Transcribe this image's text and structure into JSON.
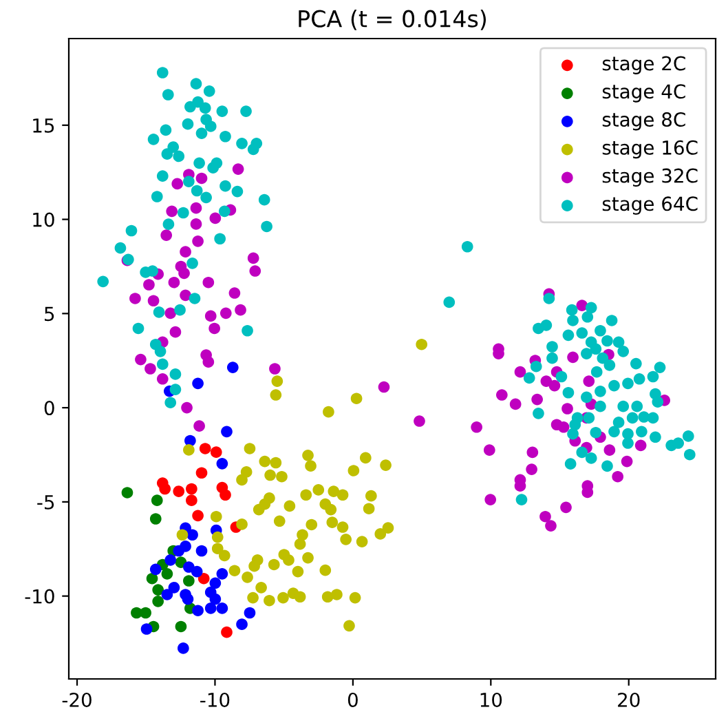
{
  "chart_data": {
    "type": "scatter",
    "title": "PCA (t = 0.014s)",
    "xlim": [
      -20.6,
      26.3
    ],
    "ylim": [
      -14.4,
      19.6
    ],
    "xticks": [
      -20,
      -10,
      0,
      10,
      20
    ],
    "yticks": [
      -10,
      -5,
      0,
      5,
      10,
      15
    ],
    "grid": false,
    "legend": "top right",
    "marker": "circle",
    "series": [
      {
        "name": "stage 2C",
        "color": "#ff0000",
        "x": [
          -10.71,
          -9.91,
          -10.97,
          -13.8,
          -12.63,
          -11.7,
          -11.7,
          -9.48,
          -9.25,
          -11.24,
          -8.48,
          -10.81,
          -9.15,
          -13.63
        ],
        "values": [
          -2.17,
          -2.36,
          -3.46,
          -4.0,
          -4.44,
          -4.31,
          -4.92,
          -4.24,
          -4.63,
          -5.73,
          -6.34,
          -9.07,
          -11.92,
          -4.31
        ]
      },
      {
        "name": "stage 4C",
        "color": "#008000",
        "x": [
          -16.36,
          -14.2,
          -14.3,
          -13.03,
          -13.8,
          -14.56,
          -13.47,
          -14.13,
          -14.13,
          -15.69,
          -15.03,
          -14.46,
          -12.47,
          -11.8,
          -11.9,
          -12.47
        ],
        "values": [
          -4.51,
          -4.92,
          -5.9,
          -7.6,
          -8.33,
          -9.07,
          -8.82,
          -9.67,
          -10.28,
          -10.89,
          -10.89,
          -11.62,
          -11.62,
          -10.65,
          -9.19,
          -8.21
        ]
      },
      {
        "name": "stage 8C",
        "color": "#0000ff",
        "x": [
          -8.71,
          -11.24,
          -13.3,
          -9.15,
          -11.8,
          -9.48,
          -12.14,
          -11.64,
          -9.91,
          -12.63,
          -13.23,
          -10.97,
          -12.14,
          -14.3,
          -11.9,
          -11.31,
          -9.48,
          -9.98,
          -13.47,
          -12.14,
          -10.31,
          -9.98,
          -9.48,
          -10.31,
          -11.24,
          -7.48,
          -8.05,
          -14.96,
          -12.3,
          -12.97,
          -11.97
        ],
        "values": [
          2.14,
          1.29,
          0.88,
          -1.27,
          -1.75,
          -2.97,
          -6.39,
          -6.75,
          -6.51,
          -7.6,
          -8.09,
          -7.6,
          -7.36,
          -8.58,
          -8.46,
          -8.7,
          -8.82,
          -9.31,
          -9.92,
          -9.92,
          -9.8,
          -10.16,
          -10.65,
          -10.65,
          -10.77,
          -10.89,
          -11.5,
          -11.75,
          -12.77,
          -9.55,
          -10.16
        ]
      },
      {
        "name": "stage 16C",
        "color": "#bfbf00",
        "x": [
          -5.49,
          -5.59,
          0.26,
          -1.77,
          -11.9,
          -7.48,
          -6.39,
          -5.59,
          -3.26,
          -3.06,
          0.92,
          2.38,
          0.05,
          -7.72,
          -8.05,
          -6.0,
          -5.16,
          -6.06,
          -6.82,
          -6.39,
          -4.59,
          -3.4,
          -2.5,
          -1.4,
          -0.74,
          1.32,
          1.16,
          -2.0,
          -1.6,
          -5.32,
          -9.91,
          -8.05,
          -3.0,
          -3.66,
          -3.83,
          -1.5,
          -0.74,
          -0.51,
          0.66,
          1.99,
          2.55,
          -12.37,
          -9.81,
          -9.31,
          -9.81,
          -6.92,
          -7.15,
          -5.72,
          -4.99,
          -4.66,
          -3.99,
          -3.26,
          -2.0,
          -8.58,
          -7.65,
          -6.65,
          -7.25,
          -6.06,
          -5.06,
          -4.33,
          -3.83,
          -1.83,
          -1.17,
          0.16,
          -0.27,
          4.98
        ],
        "values": [
          1.41,
          0.68,
          0.49,
          -0.22,
          -2.24,
          -2.17,
          -2.85,
          -2.92,
          -2.53,
          -3.09,
          -2.66,
          -3.05,
          -3.34,
          -3.41,
          -3.83,
          -3.58,
          -3.66,
          -4.8,
          -5.41,
          -5.12,
          -5.22,
          -4.63,
          -4.36,
          -4.44,
          -4.63,
          -4.68,
          -5.36,
          -5.12,
          -5.41,
          -6.02,
          -5.78,
          -6.19,
          -6.21,
          -6.75,
          -7.24,
          -6.09,
          -6.34,
          -6.99,
          -7.11,
          -6.7,
          -6.38,
          -6.75,
          -6.87,
          -7.85,
          -7.48,
          -8.09,
          -8.41,
          -8.33,
          -7.8,
          -8.09,
          -8.7,
          -7.97,
          -8.63,
          -8.65,
          -9.0,
          -9.55,
          -10.09,
          -10.24,
          -10.09,
          -9.85,
          -10.04,
          -10.04,
          -9.92,
          -10.09,
          -11.58,
          3.36
        ]
      },
      {
        "name": "stage 32C",
        "color": "#bf00bf",
        "x": [
          -8.32,
          -11.9,
          -10.97,
          -12.73,
          -13.13,
          -11.37,
          -9.98,
          -8.88,
          -13.53,
          -11.37,
          -11.24,
          -12.14,
          -12.47,
          -16.36,
          -14.13,
          -12.24,
          -7.22,
          -7.09,
          -14.79,
          -12.97,
          -10.48,
          -15.79,
          -14.46,
          -12.14,
          -8.58,
          -13.23,
          -10.31,
          -9.21,
          -8.15,
          -10.04,
          -12.87,
          -13.8,
          -10.64,
          -10.48,
          -15.39,
          -14.69,
          -5.66,
          -13.8,
          -12.04,
          -11.14,
          2.25,
          14.22,
          16.61,
          10.56,
          10.56,
          13.22,
          15.95,
          18.54,
          12.13,
          14.02,
          14.62,
          14.78,
          17.11,
          10.8,
          11.79,
          13.36,
          15.55,
          17.28,
          22.59,
          4.82,
          8.97,
          14.78,
          15.28,
          16.94,
          16.11,
          17.94,
          9.9,
          13.02,
          16.94,
          18.61,
          20.87,
          19.87,
          12.96,
          12.13,
          12.13,
          19.2,
          17.01,
          17.01,
          9.97,
          15.45,
          13.95,
          14.35
        ],
        "values": [
          12.67,
          12.38,
          12.18,
          11.89,
          10.43,
          10.6,
          10.06,
          10.5,
          9.16,
          9.75,
          8.84,
          8.28,
          7.5,
          7.82,
          7.09,
          7.14,
          7.94,
          7.26,
          6.53,
          6.65,
          6.65,
          5.8,
          5.68,
          5.97,
          6.09,
          5.02,
          4.87,
          5.02,
          5.19,
          4.21,
          4.02,
          3.48,
          2.8,
          2.43,
          2.56,
          2.07,
          2.07,
          1.53,
          0.0,
          -0.97,
          1.1,
          6.04,
          5.43,
          3.12,
          2.87,
          2.51,
          2.68,
          2.82,
          1.9,
          1.41,
          1.17,
          1.9,
          1.41,
          0.68,
          0.19,
          0.44,
          -0.05,
          0.19,
          0.39,
          -0.71,
          -1.03,
          -0.9,
          -1.03,
          -0.54,
          -1.76,
          -1.56,
          -2.25,
          -2.37,
          -2.12,
          -2.25,
          -2.0,
          -2.85,
          -3.27,
          -3.83,
          -4.15,
          -3.66,
          -4.15,
          -4.49,
          -4.88,
          -5.29,
          -5.78,
          -6.27
        ]
      },
      {
        "name": "stage 64C",
        "color": "#00bfbf",
        "x": [
          -13.8,
          -11.37,
          -10.41,
          -13.4,
          -11.8,
          -11.24,
          -10.71,
          -9.48,
          -7.75,
          -10.64,
          -11.97,
          -10.31,
          -13.57,
          -10.97,
          -9.25,
          -14.46,
          -13.03,
          -13.47,
          -12.63,
          -8.05,
          -6.99,
          -7.22,
          -11.14,
          -10.14,
          -9.88,
          -13.8,
          -11.9,
          -11.31,
          -10.64,
          -9.25,
          -8.38,
          -14.2,
          -12.3,
          -9.31,
          -6.42,
          -13.37,
          -6.25,
          -16.06,
          -9.64,
          -16.86,
          -16.29,
          -11.64,
          -15.03,
          -14.53,
          -18.12,
          -11.47,
          -12.54,
          -14.06,
          -15.56,
          -7.65,
          -14.3,
          -13.96,
          -13.8,
          -12.87,
          -12.87,
          -13.23,
          8.3,
          6.98,
          14.22,
          15.88,
          17.28,
          17.01,
          15.95,
          18.77,
          13.45,
          14.02,
          15.62,
          16.61,
          17.94,
          17.28,
          18.44,
          19.27,
          19.6,
          14.45,
          14.45,
          16.94,
          17.61,
          18.11,
          18.61,
          13.29,
          12.79,
          15.12,
          17.68,
          20.53,
          22.26,
          15.62,
          16.94,
          17.94,
          18.94,
          19.94,
          20.77,
          21.76,
          19.6,
          20.6,
          21.93,
          22.1,
          17.94,
          13.45,
          16.28,
          17.11,
          19.27,
          20.27,
          21.1,
          21.76,
          16.11,
          18.94,
          19.94,
          20.93,
          15.95,
          17.61,
          19.94,
          21.93,
          23.09,
          23.59,
          24.32,
          24.42,
          16.61,
          17.28,
          15.78,
          18.44,
          12.23
        ],
        "values": [
          17.79,
          17.2,
          16.81,
          16.62,
          15.98,
          16.23,
          15.91,
          15.74,
          15.74,
          15.3,
          15.06,
          14.94,
          14.74,
          14.57,
          14.4,
          14.25,
          13.84,
          13.47,
          13.35,
          14.03,
          14.03,
          13.72,
          12.99,
          12.74,
          12.99,
          12.3,
          12.01,
          11.52,
          11.16,
          11.77,
          11.48,
          11.21,
          10.35,
          10.43,
          11.04,
          9.74,
          9.62,
          9.4,
          8.97,
          8.48,
          7.87,
          7.67,
          7.19,
          7.26,
          6.7,
          5.8,
          5.19,
          5.07,
          4.21,
          4.09,
          3.36,
          2.99,
          2.31,
          1.78,
          0.97,
          0.27,
          8.55,
          5.6,
          5.8,
          5.19,
          5.31,
          4.82,
          4.63,
          4.63,
          4.21,
          4.38,
          3.85,
          3.97,
          4.09,
          3.48,
          3.55,
          3.48,
          2.99,
          3.24,
          2.63,
          2.87,
          3.12,
          2.63,
          2.26,
          2.19,
          1.58,
          1.65,
          1.9,
          2.34,
          2.14,
          0.8,
          0.56,
          0.87,
          1.17,
          1.29,
          1.53,
          1.65,
          0.07,
          0.07,
          0.73,
          0.31,
          0.07,
          -0.3,
          -0.54,
          -0.54,
          -0.78,
          -0.54,
          -0.49,
          -0.54,
          -0.9,
          -1.27,
          -1.39,
          -1.27,
          -1.39,
          -1.32,
          -1.88,
          -1.56,
          -2.0,
          -1.88,
          -1.51,
          -2.49,
          -2.37,
          -2.68,
          -2.98,
          -3.1,
          -4.88
        ]
      }
    ]
  }
}
